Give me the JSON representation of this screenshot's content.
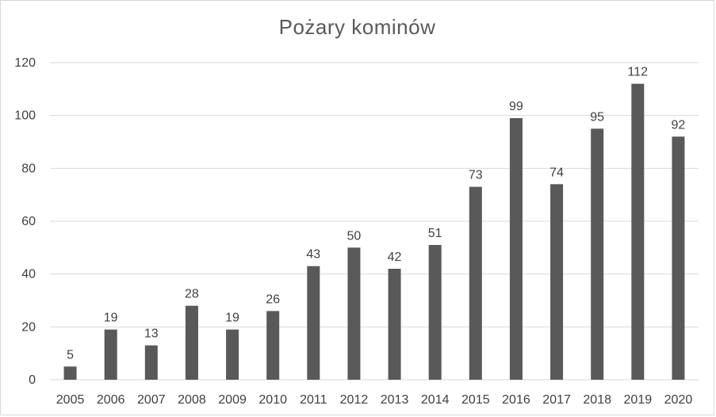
{
  "chart_data": {
    "type": "bar",
    "title": "Pożary kominów",
    "xlabel": "",
    "ylabel": "",
    "categories": [
      "2005",
      "2006",
      "2007",
      "2008",
      "2009",
      "2010",
      "2011",
      "2012",
      "2013",
      "2014",
      "2015",
      "2016",
      "2017",
      "2018",
      "2019",
      "2020"
    ],
    "values": [
      5,
      19,
      13,
      28,
      19,
      26,
      43,
      50,
      42,
      51,
      73,
      99,
      74,
      95,
      112,
      92
    ],
    "ylim": [
      0,
      120
    ],
    "yticks": [
      0,
      20,
      40,
      60,
      80,
      100,
      120
    ],
    "grid": true,
    "legend": "none",
    "bar_color": "#595959",
    "grid_color": "#d9d9d9"
  }
}
